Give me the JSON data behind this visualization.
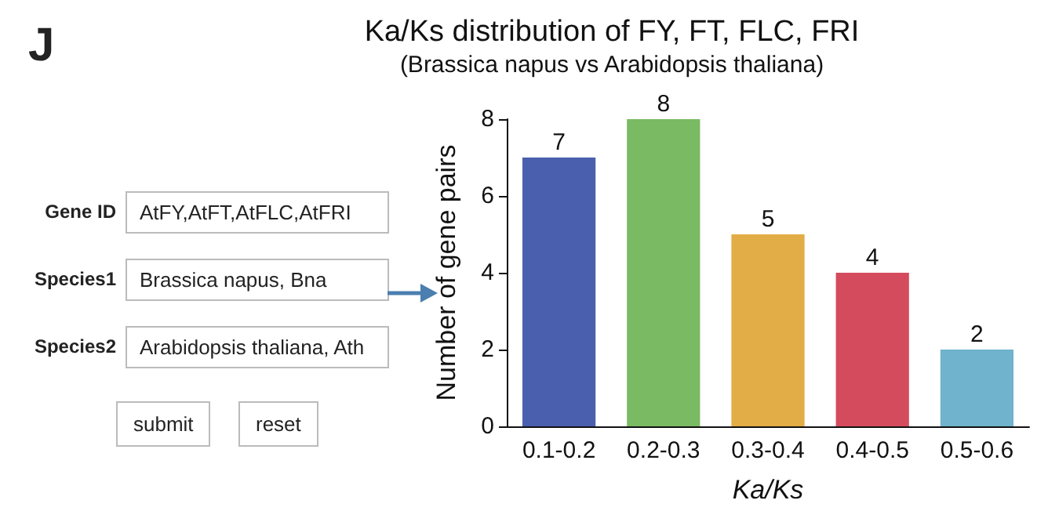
{
  "chart_data": [
    {
      "type": "other",
      "annotations": [
        "Gene ID",
        "AtFY,AtFT,AtFLC,AtFRI",
        "Species1",
        "Brassica napus, Bna",
        "Species2",
        "Arabidopsis thaliana, Ath",
        "submit",
        "reset"
      ]
    },
    {
      "type": "bar",
      "title": "Ka/Ks distribution of FY, FT, FLC, FRI",
      "subtitle": "(Brassica napus vs Arabidopsis thaliana)",
      "xlabel": "Ka/Ks",
      "ylabel": "Number of gene pairs",
      "annotations": [
        "J"
      ],
      "categories": [
        "0.1-0.2",
        "0.2-0.3",
        "0.3-0.4",
        "0.4-0.5",
        "0.5-0.6"
      ],
      "values": [
        7,
        8,
        5,
        4,
        2
      ],
      "colors": [
        "#4a5fad",
        "#7aba63",
        "#e2ad46",
        "#d54b5e",
        "#6fb3cc"
      ],
      "ylim": [
        0,
        8
      ],
      "yticks": [
        0,
        2,
        4,
        6,
        8
      ],
      "data_labels": true
    }
  ]
}
